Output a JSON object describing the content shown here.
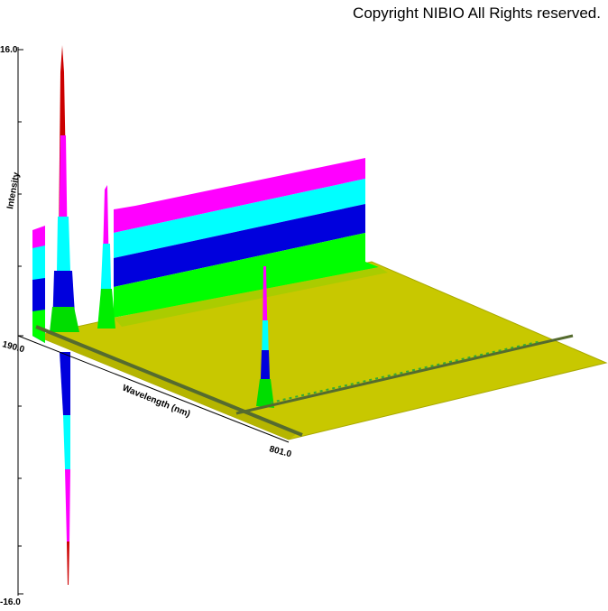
{
  "copyright": "Copyright NIBIO All Rights reserved.",
  "axes": {
    "intensity": {
      "label": "Intensity",
      "top": "16.0",
      "bottom": "-16.0"
    },
    "wavelength": {
      "label": "Wavelength (nm)",
      "start": "190.0",
      "end": "801.0"
    }
  }
}
